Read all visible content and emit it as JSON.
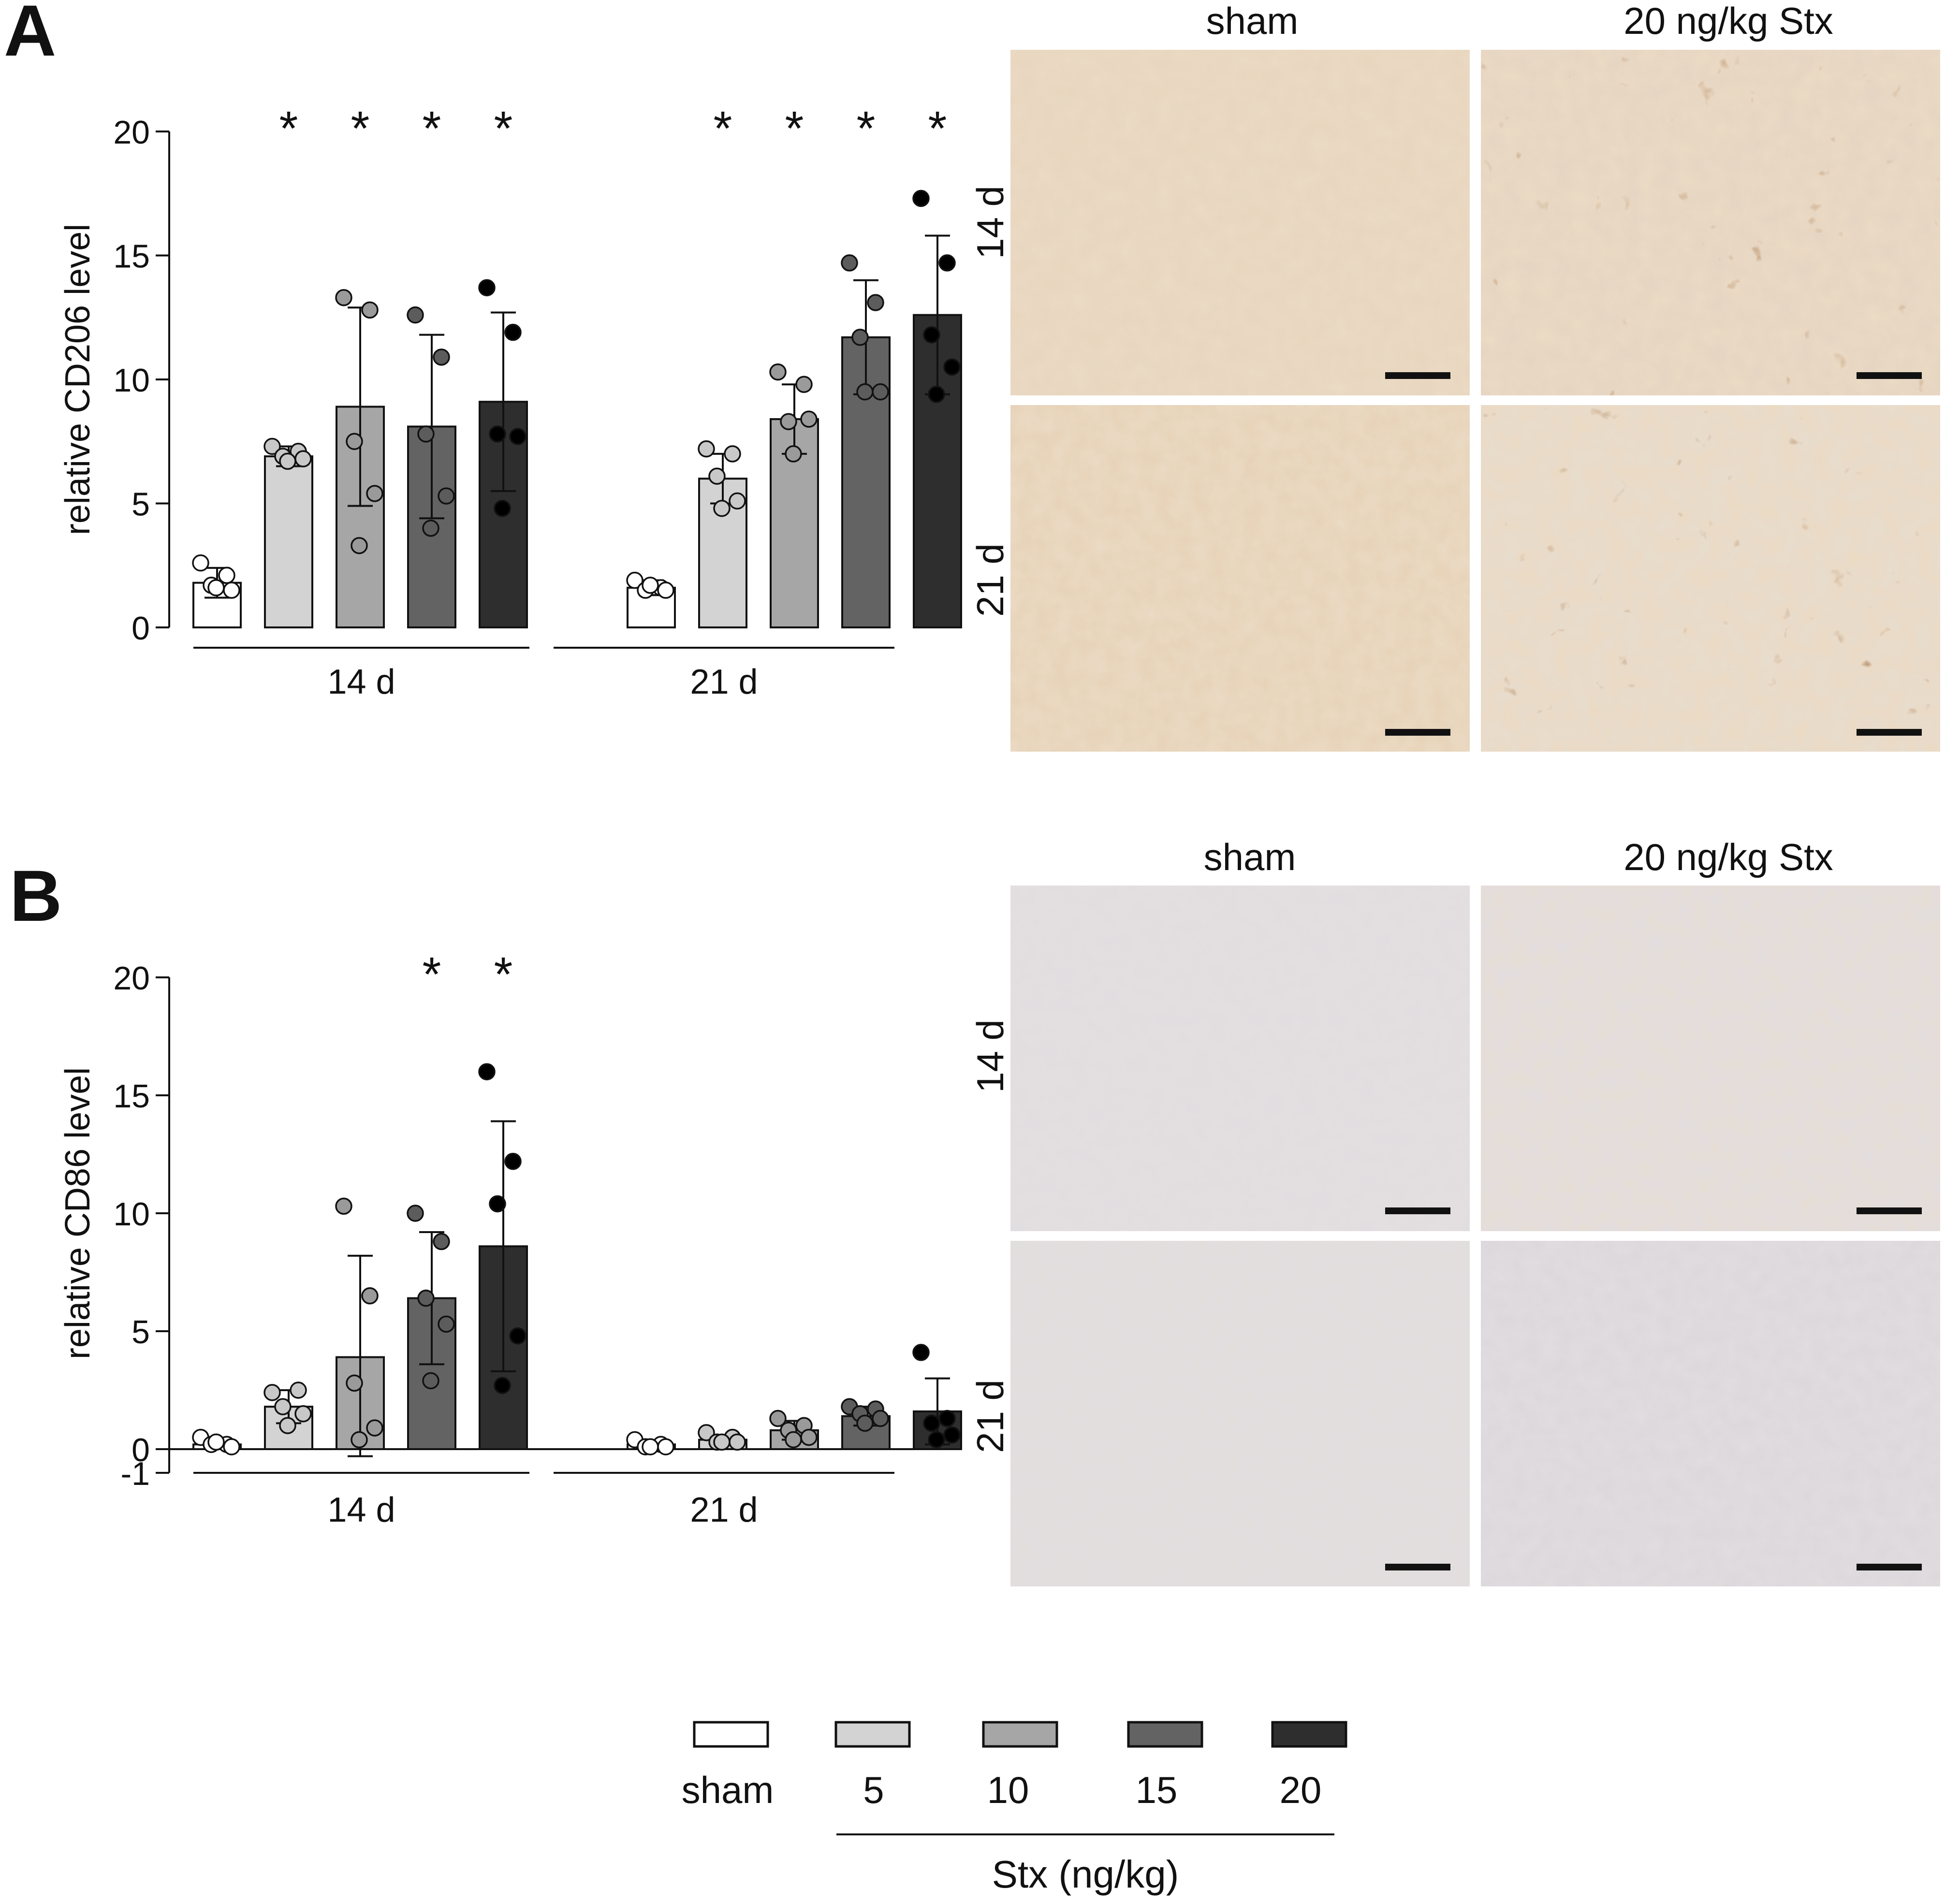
{
  "panels": [
    {
      "letter": "A",
      "chart_data": {
        "type": "bar",
        "ylabel": "relative CD206 level",
        "ylim": [
          0,
          20
        ],
        "yticks": [
          "0",
          "5",
          "10",
          "15",
          "20"
        ],
        "groups": [
          "14 d",
          "21 d"
        ],
        "series_colors": [
          "#ffffff",
          "#d3d3d3",
          "#a6a6a6",
          "#636363",
          "#2e2e2e"
        ],
        "point_colors": [
          "#ffffff",
          "#c8c8c8",
          "#9a9a9a",
          "#5c5c5c",
          "#000000"
        ],
        "bars": [
          {
            "group": 0,
            "mean": 1.8,
            "sd": 0.6,
            "points": [
              2.6,
              2.1,
              1.7,
              1.5,
              1.6
            ],
            "sig": ""
          },
          {
            "group": 0,
            "mean": 6.9,
            "sd": 0.4,
            "points": [
              7.3,
              7.1,
              6.9,
              6.8,
              6.7
            ],
            "sig": "*"
          },
          {
            "group": 0,
            "mean": 8.9,
            "sd": 4.0,
            "points": [
              13.3,
              12.8,
              7.5,
              5.4,
              3.3
            ],
            "sig": "*"
          },
          {
            "group": 0,
            "mean": 8.1,
            "sd": 3.7,
            "points": [
              12.6,
              10.9,
              7.8,
              5.3,
              4.0
            ],
            "sig": "*"
          },
          {
            "group": 0,
            "mean": 9.1,
            "sd": 3.6,
            "points": [
              13.7,
              11.9,
              7.8,
              7.7,
              4.8
            ],
            "sig": "*"
          },
          {
            "group": 1,
            "mean": 1.6,
            "sd": 0.3,
            "points": [
              1.9,
              1.6,
              1.5,
              1.5,
              1.7
            ],
            "sig": ""
          },
          {
            "group": 1,
            "mean": 6.0,
            "sd": 1.0,
            "points": [
              7.2,
              7.0,
              6.1,
              5.1,
              4.8
            ],
            "sig": "*"
          },
          {
            "group": 1,
            "mean": 8.4,
            "sd": 1.4,
            "points": [
              10.3,
              9.8,
              8.3,
              8.4,
              7.0
            ],
            "sig": "*"
          },
          {
            "group": 1,
            "mean": 11.7,
            "sd": 2.3,
            "points": [
              14.7,
              13.1,
              11.7,
              9.5,
              9.5
            ],
            "sig": "*"
          },
          {
            "group": 1,
            "mean": 12.6,
            "sd": 3.2,
            "points": [
              17.3,
              14.7,
              11.8,
              10.5,
              9.4
            ],
            "sig": "*"
          }
        ]
      },
      "micro": {
        "col_labels": [
          "sham",
          "20 ng/kg Stx"
        ],
        "row_labels": [
          "14 d",
          "21 d"
        ]
      }
    },
    {
      "letter": "B",
      "chart_data": {
        "type": "bar",
        "ylabel": "relative CD86 level",
        "ylim": [
          -1,
          20
        ],
        "yticks": [
          "-1",
          "0",
          "5",
          "10",
          "15",
          "20"
        ],
        "groups": [
          "14 d",
          "21 d"
        ],
        "series_colors": [
          "#ffffff",
          "#d3d3d3",
          "#a6a6a6",
          "#636363",
          "#2e2e2e"
        ],
        "point_colors": [
          "#ffffff",
          "#c8c8c8",
          "#9a9a9a",
          "#5c5c5c",
          "#000000"
        ],
        "bars": [
          {
            "group": 0,
            "mean": 0.2,
            "sd": 0.15,
            "points": [
              0.5,
              0.2,
              0.2,
              0.1,
              0.3
            ],
            "sig": ""
          },
          {
            "group": 0,
            "mean": 1.8,
            "sd": 0.7,
            "points": [
              2.4,
              2.5,
              1.8,
              1.5,
              1.0
            ],
            "sig": ""
          },
          {
            "group": 0,
            "mean": 3.9,
            "sd": 4.3,
            "points": [
              10.3,
              6.5,
              2.8,
              0.9,
              0.4
            ],
            "sig": ""
          },
          {
            "group": 0,
            "mean": 6.4,
            "sd": 2.8,
            "points": [
              10.0,
              8.8,
              6.4,
              5.3,
              2.9
            ],
            "sig": "*"
          },
          {
            "group": 0,
            "mean": 8.6,
            "sd": 5.3,
            "points": [
              16.0,
              12.2,
              10.4,
              4.8,
              2.7
            ],
            "sig": "*"
          },
          {
            "group": 1,
            "mean": 0.2,
            "sd": 0.1,
            "points": [
              0.4,
              0.2,
              0.1,
              0.1,
              0.1
            ],
            "sig": ""
          },
          {
            "group": 1,
            "mean": 0.4,
            "sd": 0.2,
            "points": [
              0.7,
              0.5,
              0.3,
              0.3,
              0.3
            ],
            "sig": ""
          },
          {
            "group": 1,
            "mean": 0.8,
            "sd": 0.4,
            "points": [
              1.3,
              1.0,
              0.8,
              0.5,
              0.4
            ],
            "sig": ""
          },
          {
            "group": 1,
            "mean": 1.4,
            "sd": 0.4,
            "points": [
              1.8,
              1.7,
              1.5,
              1.3,
              1.1
            ],
            "sig": ""
          },
          {
            "group": 1,
            "mean": 1.6,
            "sd": 1.4,
            "points": [
              4.1,
              1.3,
              1.1,
              0.6,
              0.4
            ],
            "sig": ""
          }
        ]
      },
      "micro": {
        "col_labels": [
          "sham",
          "20 ng/kg Stx"
        ],
        "row_labels": [
          "14 d",
          "21 d"
        ]
      }
    }
  ],
  "legend": {
    "items": [
      {
        "label": "sham",
        "color": "#ffffff"
      },
      {
        "label": "5",
        "color": "#d3d3d3"
      },
      {
        "label": "10",
        "color": "#a6a6a6"
      },
      {
        "label": "15",
        "color": "#636363"
      },
      {
        "label": "20",
        "color": "#2e2e2e"
      }
    ],
    "group_label": "Stx (ng/kg)"
  }
}
